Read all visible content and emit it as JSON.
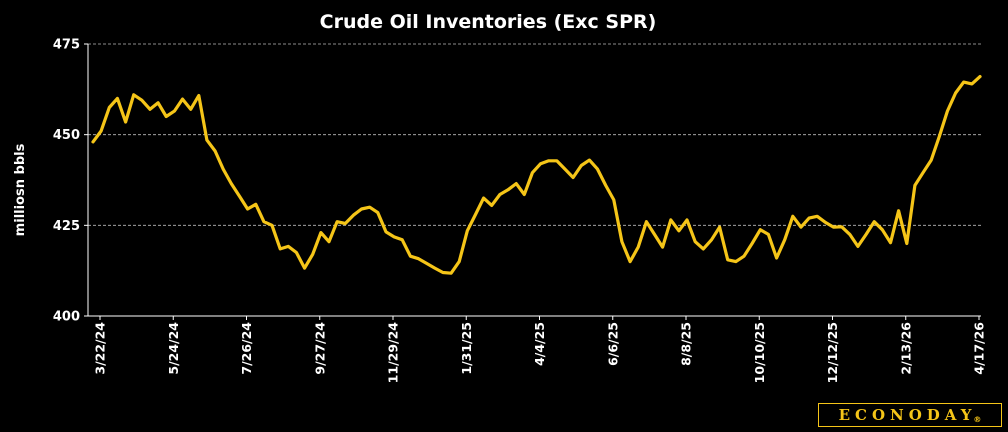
{
  "chart_data": {
    "type": "line",
    "title": "Crude Oil Inventories (Exc SPR)",
    "ylabel": "milliosn bbls",
    "xlabel": "",
    "ylim": [
      400,
      475
    ],
    "yticks": [
      "400",
      "425",
      "450",
      "475"
    ],
    "xticks": [
      "3/22/24",
      "5/24/24",
      "7/26/24",
      "9/27/24",
      "11/29/24",
      "1/31/25",
      "4/4/25",
      "6/6/25",
      "8/8/25",
      "10/10/25",
      "12/12/25",
      "2/13/26",
      "4/17/26"
    ],
    "grid": "horizontal dashed",
    "line_color": "#F5C518",
    "series": [
      {
        "name": "",
        "values": [
          448,
          451,
          457.5,
          460,
          453.5,
          461,
          459.5,
          457,
          458.8,
          455,
          456.5,
          459.8,
          457,
          460.8,
          448.5,
          445.5,
          440.5,
          436.5,
          433,
          429.5,
          430.8,
          426,
          425,
          418.5,
          419.2,
          417.5,
          413.2,
          417,
          423,
          420.5,
          426,
          425.5,
          427.8,
          429.5,
          430,
          428.5,
          423.2,
          421.8,
          421,
          416.5,
          415.8,
          414.5,
          413.2,
          412,
          411.8,
          415,
          423.5,
          428,
          432.5,
          430.5,
          433.5,
          434.8,
          436.5,
          433.5,
          439.5,
          442,
          442.8,
          442.8,
          440.5,
          438.2,
          441.5,
          443,
          440.5,
          436,
          432,
          420.5,
          415,
          419,
          426,
          422.5,
          419,
          426.5,
          423.5,
          426.5,
          420.5,
          418.5,
          421,
          424.5,
          415.5,
          415,
          416.5,
          420,
          423.8,
          422.5,
          416,
          421,
          427.5,
          424.5,
          427,
          427.5,
          425.8,
          424.5,
          424.6,
          422.5,
          419.2,
          422.5,
          426,
          423.8,
          420.2,
          429,
          420,
          436,
          439.5,
          443,
          449.5,
          456.5,
          461.5,
          464.5,
          464,
          466
        ]
      }
    ]
  },
  "logo": {
    "text": "ECONODAY",
    "mark": "®",
    "color": "#F5C518"
  }
}
